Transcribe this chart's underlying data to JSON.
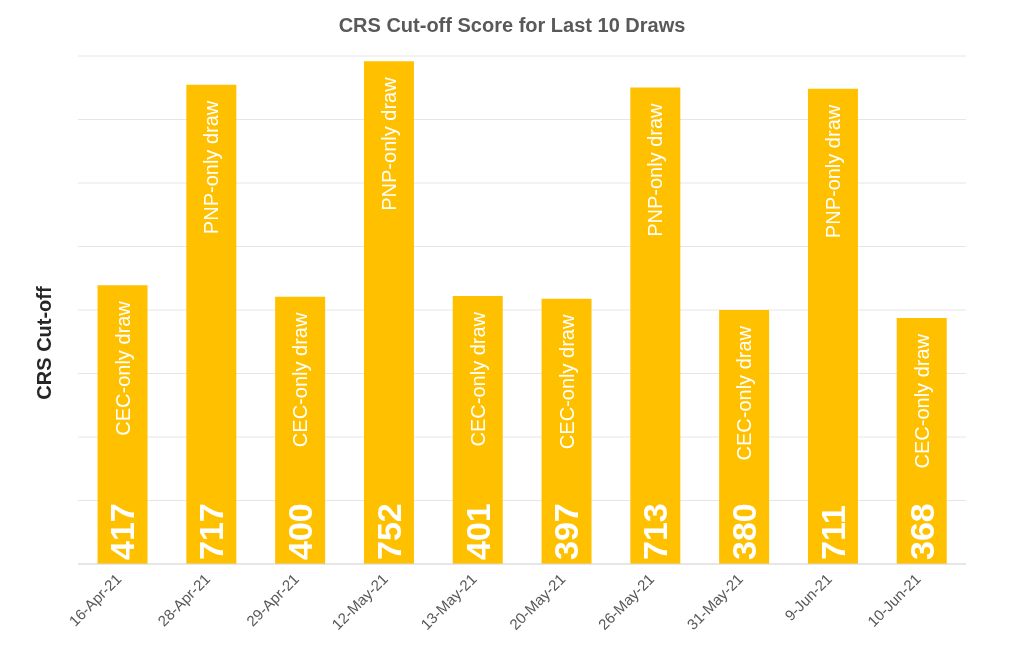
{
  "chart_data": {
    "type": "bar",
    "title": "CRS Cut-off Score for Last 10 Draws",
    "ylabel": "CRS Cut-off",
    "categories": [
      "16-Apr-21",
      "28-Apr-21",
      "29-Apr-21",
      "12-May-21",
      "13-May-21",
      "20-May-21",
      "26-May-21",
      "31-May-21",
      "9-Jun-21",
      "10-Jun-21"
    ],
    "values": [
      417,
      717,
      400,
      752,
      401,
      397,
      713,
      380,
      711,
      368
    ],
    "color": "#ffc000",
    "data_labels": true,
    "grid": "y",
    "tick_labels": "x",
    "annotations": [
      "CEC-only draw",
      "PNP-only draw",
      "CEC-only draw",
      "PNP-only draw",
      "CEC-only draw",
      "CEC-only draw",
      "PNP-only draw",
      "CEC-only draw",
      "PNP-only draw",
      "CEC-only draw"
    ]
  }
}
